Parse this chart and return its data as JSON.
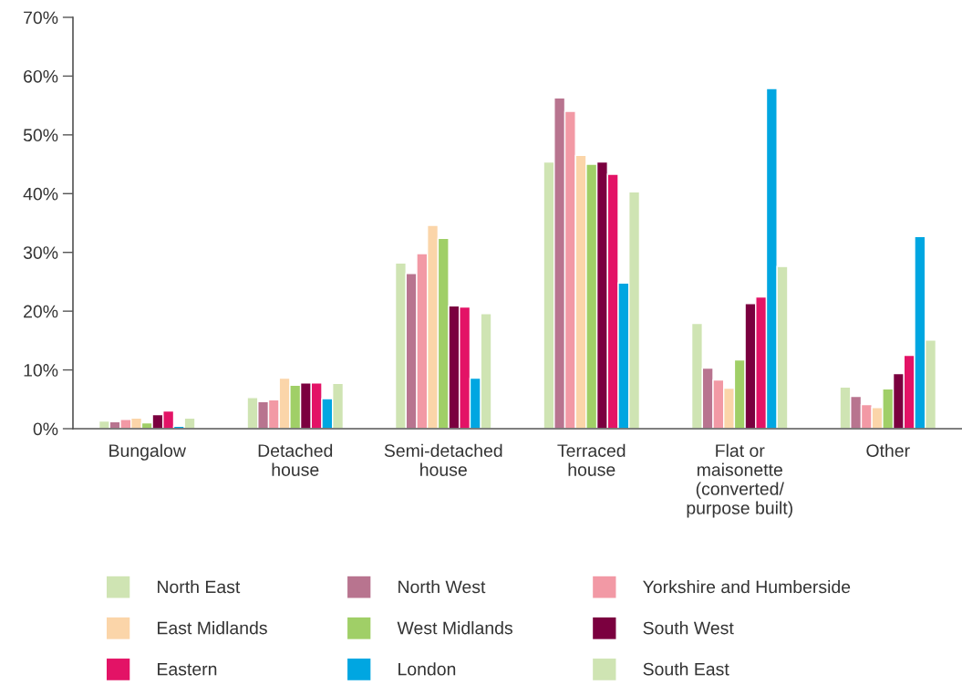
{
  "chart_data": {
    "type": "bar",
    "categories": [
      "Bungalow",
      "Detached\nhouse",
      "Semi-detached\nhouse",
      "Terraced\nhouse",
      "Flat or\nmaisonette\n(converted/\npurpose built)",
      "Other"
    ],
    "series": [
      {
        "name": "North East",
        "color": "#cfe4b3",
        "values": [
          1.3,
          5.3,
          28.2,
          45.4,
          17.9,
          7.1
        ]
      },
      {
        "name": "North West",
        "color": "#b8748f",
        "values": [
          1.2,
          4.6,
          26.4,
          56.3,
          10.3,
          5.5
        ]
      },
      {
        "name": "Yorkshire and Humberside",
        "color": "#f299a5",
        "values": [
          1.6,
          4.9,
          29.8,
          54.0,
          8.3,
          4.1
        ]
      },
      {
        "name": "East Midlands",
        "color": "#fbd5a9",
        "values": [
          1.8,
          8.6,
          34.6,
          46.5,
          6.9,
          3.6
        ]
      },
      {
        "name": "West Midlands",
        "color": "#a0cf67",
        "values": [
          1.0,
          7.4,
          32.4,
          45.0,
          11.7,
          6.8
        ]
      },
      {
        "name": "South West",
        "color": "#7b003f",
        "values": [
          2.4,
          7.8,
          20.9,
          45.4,
          21.3,
          9.4
        ]
      },
      {
        "name": "Eastern",
        "color": "#e31366",
        "values": [
          3.0,
          7.8,
          20.7,
          43.3,
          22.4,
          12.5
        ]
      },
      {
        "name": "London",
        "color": "#00a6e1",
        "values": [
          0.4,
          5.1,
          8.6,
          24.8,
          57.9,
          32.7
        ]
      },
      {
        "name": "South East",
        "color": "#cfe4b3",
        "values": [
          1.8,
          7.7,
          19.6,
          40.3,
          27.6,
          15.1
        ]
      }
    ],
    "ylim": [
      0,
      70
    ],
    "yticks": [
      {
        "value": 0,
        "label": "0%"
      },
      {
        "value": 10,
        "label": "10%"
      },
      {
        "value": 20,
        "label": "20%"
      },
      {
        "value": 30,
        "label": "30%"
      },
      {
        "value": 40,
        "label": "40%"
      },
      {
        "value": 50,
        "label": "50%"
      },
      {
        "value": 60,
        "label": "60%"
      },
      {
        "value": 70,
        "label": "70%"
      }
    ],
    "grid": false,
    "legend": "bottom"
  }
}
